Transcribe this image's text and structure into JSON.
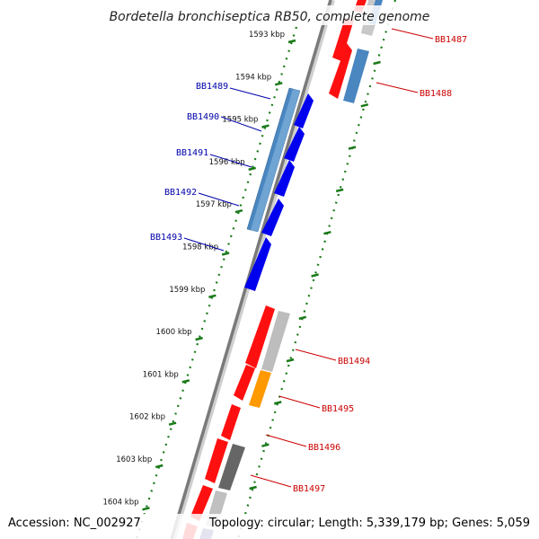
{
  "title": "Bordetella bronchiseptica RB50, complete genome",
  "footer": {
    "accession": "Accession: NC_002927",
    "summary": "Topology: circular; Length: 5,339,179 bp; Genes: 5,059"
  },
  "colors": {
    "backbone": "#7a7a7a",
    "tick": "#1a7a1a",
    "forward_gene": "#ff1010",
    "reverse_gene": "#0000ee",
    "steel": "#4a86c0",
    "grey": "#b8b8b8",
    "dark_grey": "#666666",
    "orange": "#ff9900",
    "label_blue": "#0000aa",
    "label_red": "#cc0000"
  },
  "scale": {
    "unit": "kbp",
    "labels": [
      "1593 kbp",
      "1594 kbp",
      "1595 kbp",
      "1596 kbp",
      "1597 kbp",
      "1598 kbp",
      "1599 kbp",
      "1600 kbp",
      "1601 kbp",
      "1602 kbp",
      "1603 kbp",
      "1604 kbp"
    ]
  },
  "genes_left": [
    "BB1489",
    "BB1490",
    "BB1491",
    "BB1492",
    "BB1493"
  ],
  "genes_right": [
    "BB1487",
    "BB1488",
    "BB1494",
    "BB1495",
    "BB1496",
    "BB1497"
  ]
}
